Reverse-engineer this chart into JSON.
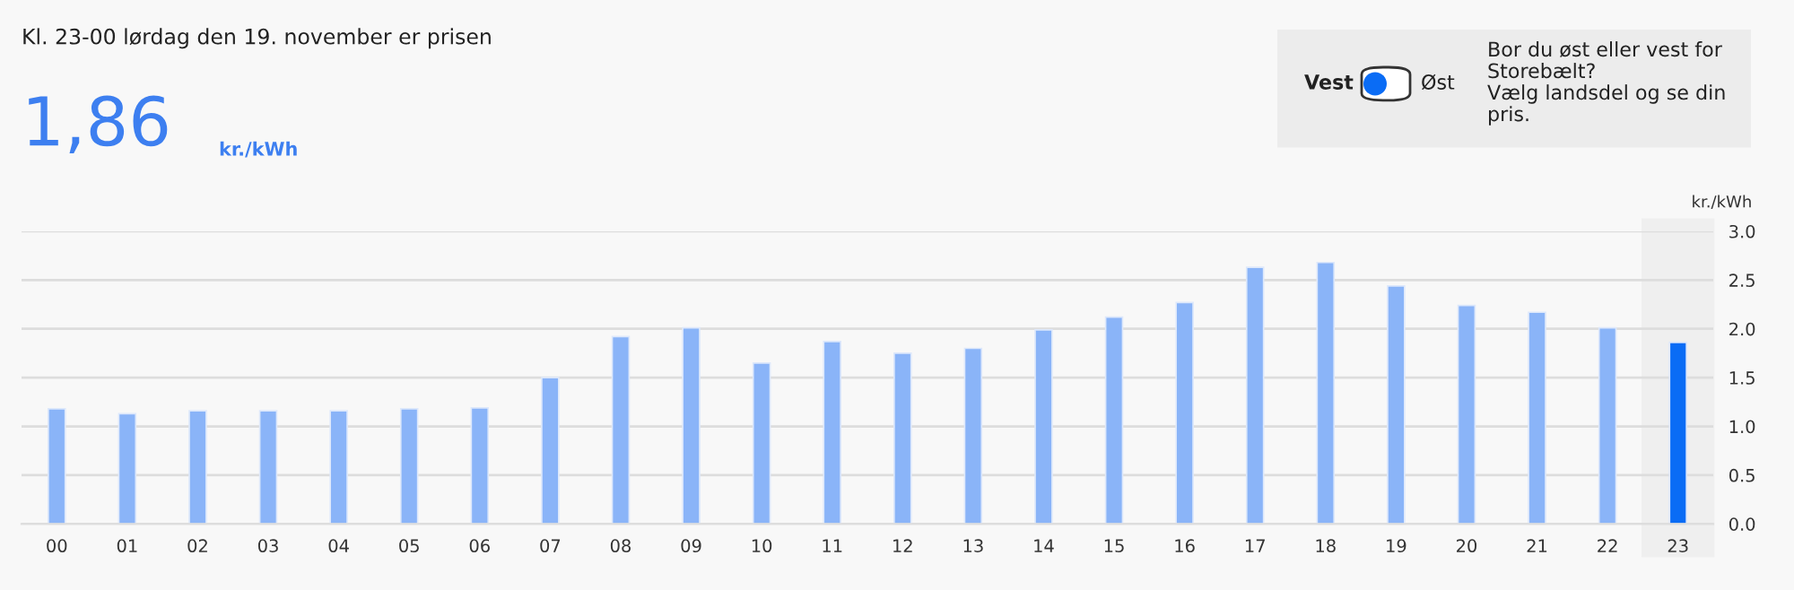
{
  "chart_data": {
    "type": "bar",
    "title": "Kl. 23-00 lørdag den 19. november er prisen",
    "ylabel": "kr./kWh",
    "annotations": [
      "1,86",
      "kr./kWh",
      "Vest",
      "Øst",
      "Bor du øst eller vest for\nStorebælt?\nVælg landsdel og se din\npris."
    ],
    "categories": [
      "00",
      "01",
      "02",
      "03",
      "04",
      "05",
      "06",
      "07",
      "08",
      "09",
      "10",
      "11",
      "12",
      "13",
      "14",
      "15",
      "16",
      "17",
      "18",
      "19",
      "20",
      "21",
      "22",
      "23"
    ],
    "values": [
      1.18,
      1.13,
      1.16,
      1.16,
      1.16,
      1.18,
      1.19,
      1.5,
      1.92,
      2.01,
      1.65,
      1.87,
      1.75,
      1.8,
      1.99,
      2.12,
      2.27,
      2.63,
      2.68,
      2.44,
      2.24,
      2.17,
      2.01,
      1.86
    ],
    "colors": [
      "#8ab4f8",
      "#8ab4f8",
      "#8ab4f8",
      "#8ab4f8",
      "#8ab4f8",
      "#8ab4f8",
      "#8ab4f8",
      "#8ab4f8",
      "#8ab4f8",
      "#8ab4f8",
      "#8ab4f8",
      "#8ab4f8",
      "#8ab4f8",
      "#8ab4f8",
      "#8ab4f8",
      "#8ab4f8",
      "#8ab4f8",
      "#8ab4f8",
      "#8ab4f8",
      "#8ab4f8",
      "#8ab4f8",
      "#8ab4f8",
      "#8ab4f8",
      "#0a6cf5"
    ],
    "bands": [
      {
        "axis": "x",
        "from": "23",
        "to": "23",
        "color": "#efefef"
      }
    ],
    "ylim": [
      0,
      3.0
    ],
    "yticks": [
      {
        "value": 0,
        "label": "0.0"
      },
      {
        "value": 0.5,
        "label": "0.5"
      },
      {
        "value": 1.0,
        "label": "1.0"
      },
      {
        "value": 1.5,
        "label": "1.5"
      },
      {
        "value": 2.0,
        "label": "2.0"
      },
      {
        "value": 2.5,
        "label": "2.5"
      },
      {
        "value": 3.0,
        "label": "3.0"
      }
    ],
    "grid": "y"
  }
}
